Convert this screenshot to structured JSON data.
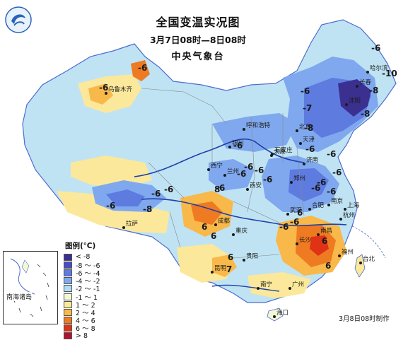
{
  "header": {
    "title": "全国变温实况图",
    "time_range": "3月7日08时—8日08时",
    "organization": "中央气象台"
  },
  "footer": {
    "production_note": "3月8日08时制作"
  },
  "legend": {
    "title": "图例(℃)",
    "items": [
      {
        "label": "< -8",
        "color": "#3b2f8f"
      },
      {
        "label": "-8 ～ -6",
        "color": "#4a4cc3"
      },
      {
        "label": "-6 ～ -4",
        "color": "#5e7be0"
      },
      {
        "label": "-4 ～ -2",
        "color": "#7fa8ee"
      },
      {
        "label": "-2 ～ -1",
        "color": "#b3dcf4"
      },
      {
        "label": "-1 ～ 1",
        "color": "#f3f7d6"
      },
      {
        "label": "1 ～ 2",
        "color": "#fbe89a"
      },
      {
        "label": "2 ～ 4",
        "color": "#f8b84a"
      },
      {
        "label": "4 ～ 6",
        "color": "#ee7a22"
      },
      {
        "label": "6 ～ 8",
        "color": "#e03214"
      },
      {
        "label": "> 8",
        "color": "#b1122f"
      }
    ]
  },
  "inset": {
    "label": "南海诸岛"
  },
  "cities": [
    {
      "name": "乌鲁木齐"
    },
    {
      "name": "哈尔滨"
    },
    {
      "name": "长春"
    },
    {
      "name": "沈阳"
    },
    {
      "name": "呼和浩特"
    },
    {
      "name": "北京"
    },
    {
      "name": "天津"
    },
    {
      "name": "太原"
    },
    {
      "name": "石家庄"
    },
    {
      "name": "济南"
    },
    {
      "name": "银川"
    },
    {
      "name": "西宁"
    },
    {
      "name": "兰州"
    },
    {
      "name": "西安"
    },
    {
      "name": "郑州"
    },
    {
      "name": "拉萨"
    },
    {
      "name": "成都"
    },
    {
      "name": "重庆"
    },
    {
      "name": "武汉"
    },
    {
      "name": "合肥"
    },
    {
      "name": "南京"
    },
    {
      "name": "上海"
    },
    {
      "name": "杭州"
    },
    {
      "name": "长沙"
    },
    {
      "name": "南昌"
    },
    {
      "name": "贵阳"
    },
    {
      "name": "昆明"
    },
    {
      "name": "福州"
    },
    {
      "name": "台北"
    },
    {
      "name": "南宁"
    },
    {
      "name": "广州"
    },
    {
      "name": "海口"
    }
  ],
  "value_labels": [
    "-6",
    "-8",
    "-10",
    "-6",
    "-7",
    "-8",
    "-6",
    "-6",
    "-8",
    "-6",
    "-6",
    "-6",
    "-6",
    "-6",
    "-6",
    "-8",
    "-6",
    "-6",
    "-6",
    "-6",
    "-6",
    "-6",
    "-6",
    "-6",
    "-6",
    "6",
    "8",
    "6",
    "6",
    "6",
    "7",
    "6",
    "6",
    "-6",
    "-6"
  ]
}
